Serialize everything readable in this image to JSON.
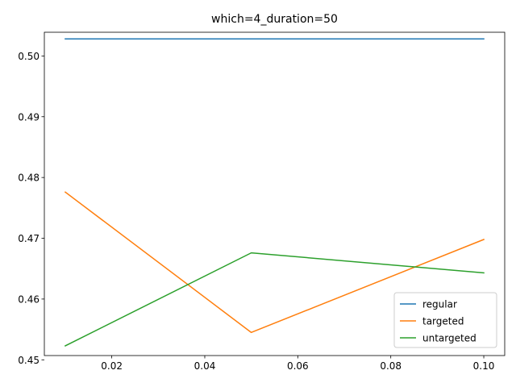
{
  "chart_data": {
    "type": "line",
    "title": "which=4_duration=50",
    "xlabel": "",
    "ylabel": "",
    "x": [
      0.01,
      0.05,
      0.1
    ],
    "xlim": [
      0.0055,
      0.1045
    ],
    "ylim": [
      0.4507,
      0.5039
    ],
    "xticks": [
      0.02,
      0.04,
      0.06,
      0.08,
      0.1
    ],
    "xtick_labels": [
      "0.02",
      "0.04",
      "0.06",
      "0.08",
      "0.10"
    ],
    "yticks": [
      0.45,
      0.46,
      0.47,
      0.48,
      0.49,
      0.5
    ],
    "ytick_labels": [
      "0.45",
      "0.46",
      "0.47",
      "0.48",
      "0.49",
      "0.50"
    ],
    "grid": false,
    "legend_position": "lower right",
    "series": [
      {
        "name": "regular",
        "color": "#1f77b4",
        "values": [
          0.5028,
          0.5028,
          0.5028
        ]
      },
      {
        "name": "targeted",
        "color": "#ff7f0e",
        "values": [
          0.4776,
          0.4545,
          0.4698
        ]
      },
      {
        "name": "untargeted",
        "color": "#2ca02c",
        "values": [
          0.4523,
          0.4676,
          0.4643
        ]
      }
    ]
  }
}
